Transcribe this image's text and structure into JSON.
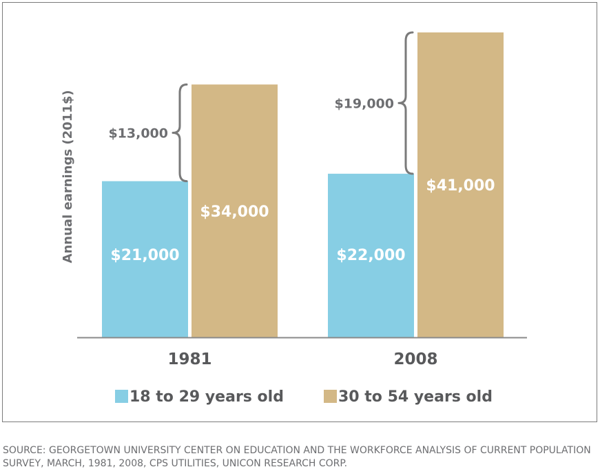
{
  "chart_data": {
    "type": "bar",
    "ylabel": "Annual earnings (2011$)",
    "categories": [
      "1981",
      "2008"
    ],
    "series": [
      {
        "name": "18 to 29 years old",
        "values": [
          21000,
          22000
        ],
        "labels": [
          "$21,000",
          "$22,000"
        ],
        "color": "#87cee4"
      },
      {
        "name": "30 to 54 years old",
        "values": [
          34000,
          41000
        ],
        "labels": [
          "$34,000",
          "$41,000"
        ],
        "color": "#d3b886"
      }
    ],
    "gaps": [
      {
        "category": "1981",
        "label": "$13,000",
        "value": 13000
      },
      {
        "category": "2008",
        "label": "$19,000",
        "value": 19000
      }
    ],
    "ylim": [
      0,
      41000
    ],
    "grid": false,
    "legend_position": "bottom"
  },
  "source": "SOURCE: GEORGETOWN UNIVERSITY CENTER ON EDUCATION AND THE WORKFORCE ANALYSIS OF CURRENT POPULATION SURVEY, MARCH, 1981, 2008, CPS UTILITIES, UNICON RESEARCH CORP."
}
